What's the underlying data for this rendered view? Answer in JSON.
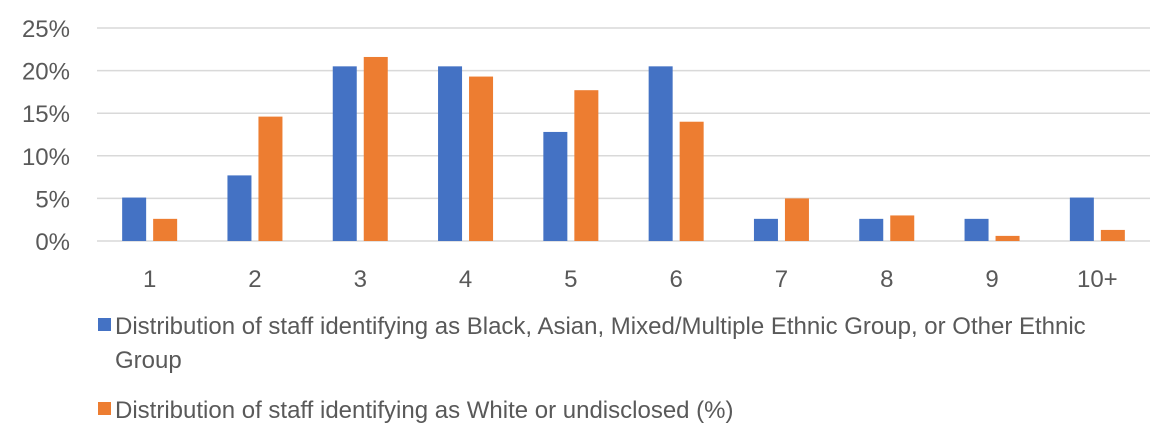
{
  "chart_data": {
    "type": "bar",
    "categories": [
      "1",
      "2",
      "3",
      "4",
      "5",
      "6",
      "7",
      "8",
      "9",
      "10+"
    ],
    "series": [
      {
        "name": "Distribution of staff identifying as Black, Asian, Mixed/Multiple Ethnic Group, or Other Ethnic Group",
        "color": "#4472c4",
        "values": [
          5.1,
          7.7,
          20.5,
          20.5,
          12.8,
          20.5,
          2.6,
          2.6,
          2.6,
          5.1
        ]
      },
      {
        "name": "Distribution of staff identifying as White or undisclosed (%)",
        "color": "#ed7d31",
        "values": [
          2.6,
          14.6,
          21.6,
          19.3,
          17.7,
          14.0,
          5.0,
          3.0,
          0.6,
          1.3
        ]
      }
    ],
    "yticks": [
      "0%",
      "5%",
      "10%",
      "15%",
      "20%",
      "25%"
    ],
    "ylim": [
      0,
      25
    ],
    "grid": true,
    "legend_position": "bottom",
    "title": "",
    "xlabel": "",
    "ylabel": ""
  }
}
